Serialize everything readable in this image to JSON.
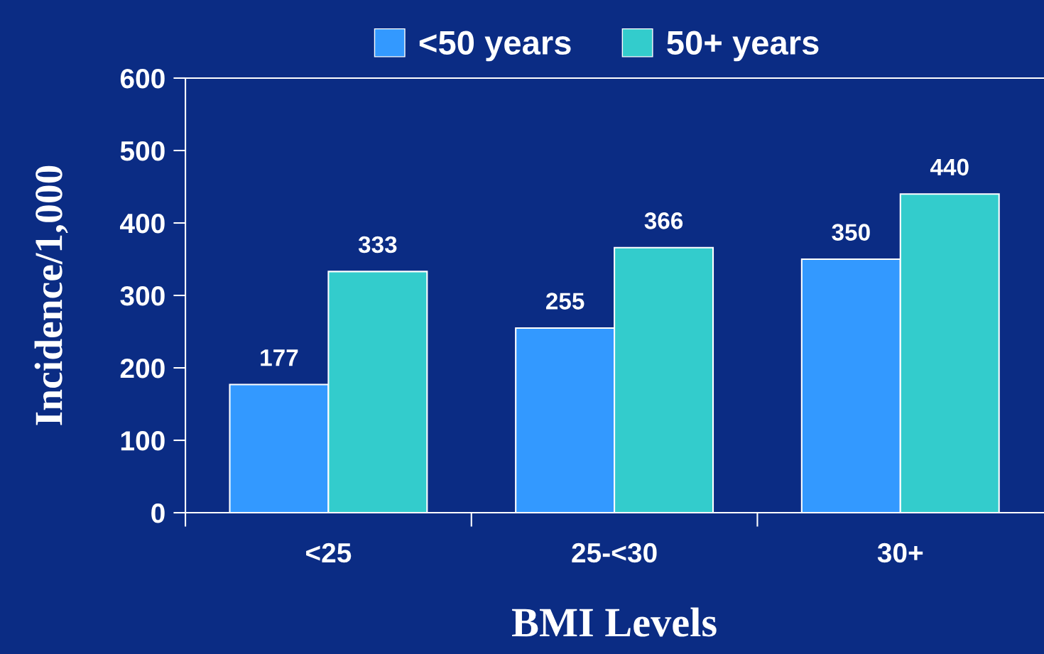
{
  "chart_data": {
    "type": "bar",
    "xlabel": "BMI Levels",
    "ylabel": "Incidence/1,000",
    "categories": [
      "<25",
      "25-<30",
      "30+"
    ],
    "series": [
      {
        "name": "<50 years",
        "color": "#3399ff",
        "values": [
          177,
          255,
          350
        ]
      },
      {
        "name": "50+ years",
        "color": "#33cccc",
        "values": [
          333,
          366,
          440
        ]
      }
    ],
    "ylim": [
      0,
      600
    ],
    "yticks": [
      0,
      100,
      200,
      300,
      400,
      500,
      600
    ],
    "data_labels": true,
    "grid": false,
    "legend": "top"
  }
}
